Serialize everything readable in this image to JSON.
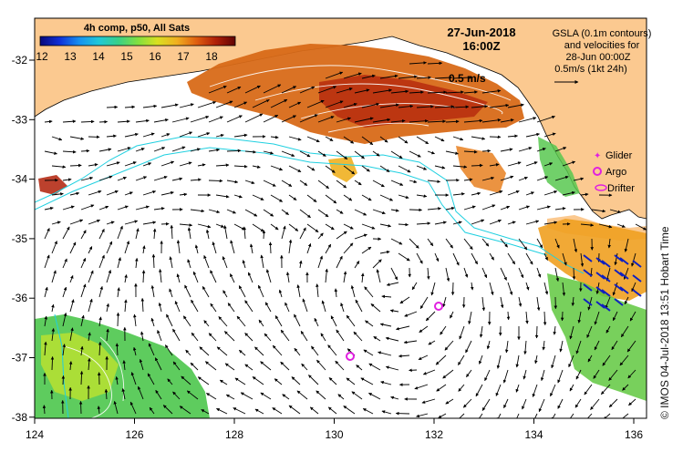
{
  "map": {
    "title_date": "27-Jun-2018",
    "title_time": "16:00Z",
    "sst_label": "4h comp, p50, All Sats",
    "colorbar": {
      "ticks": [
        "12",
        "13",
        "14",
        "15",
        "16",
        "17",
        "18"
      ],
      "colors": [
        "#08087a",
        "#1030d8",
        "#1890f0",
        "#20c8d8",
        "#38d088",
        "#80e040",
        "#d8e020",
        "#f0b020",
        "#e06010",
        "#b02008",
        "#600404"
      ]
    },
    "info_text": [
      "GSLA (0.1m contours)",
      "and velocities for",
      "28-Jun 00:00Z",
      "0.5m/s (1kt 24h)"
    ],
    "scale_arrow_label": "0.5 m/s",
    "legend": {
      "glider": "Glider",
      "argo": "Argo",
      "drifter": "Drifter"
    },
    "side_label": "© IMOS 04-Jul-2018 13:51 Hobart Time",
    "lon_ticks": [
      "124",
      "126",
      "128",
      "130",
      "132",
      "134",
      "136"
    ],
    "lat_ticks": [
      "-32",
      "-33",
      "-34",
      "-35",
      "-36",
      "-37",
      "-38"
    ],
    "colors": {
      "land": "#fbc990",
      "ocean": "#ffffff",
      "vector": "#000000",
      "shelf_contour": "#20d0e0",
      "argo": "#e020e0",
      "drifter_vectors": "#1020c0"
    }
  }
}
